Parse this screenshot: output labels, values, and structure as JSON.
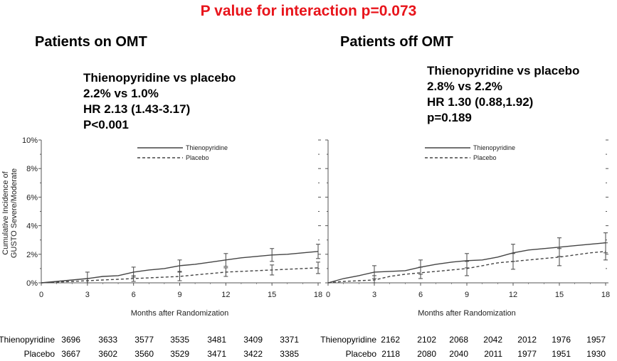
{
  "title": "P value for interaction p=0.073",
  "y_axis_label_line1": "Cumulative Incidence of",
  "y_axis_label_line2": "GUSTO Severe/Moderate",
  "colors": {
    "title": "#e8141b",
    "curve": "#444444",
    "axis": "#555555"
  },
  "panels": [
    {
      "title": "Patients on OMT",
      "stats": [
        "Thienopyridine vs placebo",
        "2.2% vs 1.0%",
        "HR 2.13 (1.43-3.17)",
        "P<0.001"
      ],
      "risk_table": {
        "rows": [
          {
            "label": "Thienopyridine",
            "values": [
              "3696",
              "3633",
              "3577",
              "3535",
              "3481",
              "3409",
              "3371"
            ]
          },
          {
            "label": "Placebo",
            "values": [
              "3667",
              "3602",
              "3560",
              "3529",
              "3471",
              "3422",
              "3385"
            ]
          }
        ]
      }
    },
    {
      "title": "Patients off OMT",
      "stats": [
        "Thienopyridine vs placebo",
        "2.8% vs 2.2%",
        "HR 1.30 (0.88,1.92)",
        "p=0.189"
      ],
      "risk_table": {
        "rows": [
          {
            "label": "Thienopyridine",
            "values": [
              "2162",
              "2102",
              "2068",
              "2042",
              "2012",
              "1976",
              "1957"
            ]
          },
          {
            "label": "Placebo",
            "values": [
              "2118",
              "2080",
              "2040",
              "2011",
              "1977",
              "1951",
              "1930"
            ]
          }
        ]
      }
    }
  ],
  "chart_data": [
    {
      "type": "line",
      "title": "Patients on OMT",
      "xlabel": "Months after Randomization",
      "ylabel": "Cumulative Incidence of GUSTO Severe/Moderate",
      "xlim": [
        0,
        18
      ],
      "ylim": [
        0,
        10
      ],
      "x_ticks": [
        0,
        3,
        6,
        9,
        12,
        15,
        18
      ],
      "y_ticks": [
        "0%",
        "2%",
        "4%",
        "6%",
        "8%",
        "10%"
      ],
      "legend": "top-right",
      "series": [
        {
          "name": "Thienopyridine",
          "style": "solid",
          "points": [
            [
              0,
              0
            ],
            [
              1,
              0.1
            ],
            [
              2,
              0.2
            ],
            [
              3,
              0.3
            ],
            [
              4,
              0.45
            ],
            [
              5,
              0.5
            ],
            [
              6,
              0.75
            ],
            [
              7,
              0.9
            ],
            [
              8,
              1.0
            ],
            [
              9,
              1.2
            ],
            [
              10,
              1.3
            ],
            [
              11,
              1.45
            ],
            [
              12,
              1.6
            ],
            [
              13,
              1.75
            ],
            [
              14,
              1.85
            ],
            [
              15,
              1.95
            ],
            [
              16,
              2.0
            ],
            [
              17,
              2.1
            ],
            [
              18,
              2.2
            ]
          ],
          "error_bars": [
            [
              3,
              0.3,
              0.45
            ],
            [
              6,
              0.75,
              0.35
            ],
            [
              9,
              1.2,
              0.4
            ],
            [
              12,
              1.6,
              0.45
            ],
            [
              15,
              1.95,
              0.45
            ],
            [
              18,
              2.2,
              0.5
            ]
          ]
        },
        {
          "name": "Placebo",
          "style": "dashed",
          "points": [
            [
              0,
              0
            ],
            [
              1,
              0.05
            ],
            [
              2,
              0.1
            ],
            [
              3,
              0.15
            ],
            [
              4,
              0.2
            ],
            [
              5,
              0.25
            ],
            [
              6,
              0.3
            ],
            [
              7,
              0.35
            ],
            [
              8,
              0.4
            ],
            [
              9,
              0.45
            ],
            [
              10,
              0.55
            ],
            [
              11,
              0.65
            ],
            [
              12,
              0.75
            ],
            [
              13,
              0.8
            ],
            [
              14,
              0.85
            ],
            [
              15,
              0.9
            ],
            [
              16,
              0.95
            ],
            [
              17,
              1.0
            ],
            [
              18,
              1.05
            ]
          ],
          "error_bars": [
            [
              3,
              0.15,
              0.15
            ],
            [
              6,
              0.3,
              0.2
            ],
            [
              9,
              0.45,
              0.3
            ],
            [
              12,
              0.75,
              0.3
            ],
            [
              15,
              0.9,
              0.35
            ],
            [
              18,
              1.05,
              0.4
            ]
          ]
        }
      ]
    },
    {
      "type": "line",
      "title": "Patients off OMT",
      "xlabel": "Months after Randomization",
      "ylabel": "",
      "xlim": [
        0,
        18
      ],
      "ylim": [
        0,
        10
      ],
      "x_ticks": [
        0,
        3,
        6,
        9,
        12,
        15,
        18
      ],
      "legend": "top-right",
      "series": [
        {
          "name": "Thienopyridine",
          "style": "solid",
          "points": [
            [
              0,
              0
            ],
            [
              1,
              0.3
            ],
            [
              2,
              0.5
            ],
            [
              3,
              0.75
            ],
            [
              4,
              0.8
            ],
            [
              5,
              0.85
            ],
            [
              6,
              1.1
            ],
            [
              7,
              1.3
            ],
            [
              8,
              1.45
            ],
            [
              9,
              1.55
            ],
            [
              10,
              1.6
            ],
            [
              11,
              1.8
            ],
            [
              12,
              2.1
            ],
            [
              13,
              2.3
            ],
            [
              14,
              2.4
            ],
            [
              15,
              2.5
            ],
            [
              16,
              2.6
            ],
            [
              17,
              2.7
            ],
            [
              18,
              2.8
            ]
          ],
          "error_bars": [
            [
              3,
              0.75,
              0.45
            ],
            [
              6,
              1.1,
              0.5
            ],
            [
              9,
              1.55,
              0.5
            ],
            [
              12,
              2.1,
              0.6
            ],
            [
              15,
              2.5,
              0.65
            ],
            [
              18,
              2.8,
              0.7
            ]
          ]
        },
        {
          "name": "Placebo",
          "style": "dashed",
          "points": [
            [
              0,
              0
            ],
            [
              1,
              0.1
            ],
            [
              2,
              0.15
            ],
            [
              3,
              0.2
            ],
            [
              4,
              0.45
            ],
            [
              5,
              0.6
            ],
            [
              6,
              0.7
            ],
            [
              7,
              0.8
            ],
            [
              8,
              0.9
            ],
            [
              9,
              1.0
            ],
            [
              10,
              1.2
            ],
            [
              11,
              1.4
            ],
            [
              12,
              1.5
            ],
            [
              13,
              1.6
            ],
            [
              14,
              1.7
            ],
            [
              15,
              1.8
            ],
            [
              16,
              1.95
            ],
            [
              17,
              2.1
            ],
            [
              18,
              2.2
            ]
          ],
          "error_bars": [
            [
              3,
              0.2,
              0.3
            ],
            [
              6,
              0.7,
              0.4
            ],
            [
              9,
              1.0,
              0.5
            ],
            [
              12,
              1.5,
              0.55
            ],
            [
              15,
              1.8,
              0.6
            ],
            [
              18,
              2.2,
              0.6
            ]
          ]
        }
      ]
    }
  ]
}
